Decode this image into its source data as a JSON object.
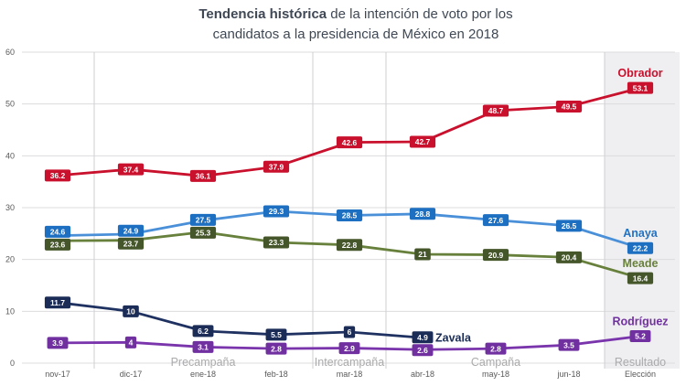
{
  "title": {
    "bold": "Tendencia histórica",
    "rest": " de la intención de voto por los",
    "line2": "candidatos a la presidencia de México en 2018"
  },
  "chart_data": {
    "type": "line",
    "categories": [
      "nov-17",
      "dic-17",
      "ene-18",
      "feb-18",
      "mar-18",
      "abr-18",
      "may-18",
      "jun-18",
      "Elección"
    ],
    "series": [
      {
        "name": "Obrador",
        "values": [
          36.2,
          37.4,
          36.1,
          37.9,
          42.6,
          42.7,
          48.7,
          49.5,
          53.1
        ],
        "line_color": "#c9102c",
        "label_bg": "#c9102c",
        "name_color": "#c9102c",
        "name_pos": "above_end"
      },
      {
        "name": "Anaya",
        "values": [
          24.6,
          24.9,
          27.5,
          29.3,
          28.5,
          28.8,
          27.6,
          26.5,
          22.2
        ],
        "line_color": "#4a90d9",
        "label_bg": "#1d6fc2",
        "name_color": "#2272c3",
        "name_pos": "above_end"
      },
      {
        "name": "Meade",
        "values": [
          23.6,
          23.7,
          25.3,
          23.3,
          22.8,
          21,
          20.9,
          20.4,
          16.4
        ],
        "line_color": "#67803c",
        "label_bg": "#45562a",
        "name_color": "#68803b",
        "name_pos": "above_end"
      },
      {
        "name": "Zavala",
        "values": [
          11.7,
          10,
          6.2,
          5.5,
          6,
          4.9,
          null,
          null,
          null
        ],
        "line_color": "#1e3160",
        "label_bg": "#1b2c56",
        "name_color": "#1b2c56",
        "name_pos": "right_end"
      },
      {
        "name": "Rodríguez",
        "values": [
          3.9,
          4,
          3.1,
          2.8,
          2.9,
          2.6,
          2.8,
          3.5,
          5.2
        ],
        "line_color": "#7a35ac",
        "label_bg": "#7030a0",
        "name_color": "#7030a0",
        "name_pos": "above_end"
      }
    ],
    "ylim": [
      0,
      60
    ],
    "yticks": [
      0,
      10,
      20,
      30,
      40,
      50,
      60
    ],
    "grid": true,
    "legend_position": "end-of-line-labels",
    "phase_separators": [
      0.5,
      3.5,
      4.5,
      7.5
    ],
    "phases": [
      {
        "label": "Precampaña",
        "at": 2
      },
      {
        "label": "Intercampaña",
        "at": 4
      },
      {
        "label": "Campaña",
        "at": 6
      },
      {
        "label": "Resultado",
        "at": 8
      }
    ],
    "shaded_from": 7.5,
    "colors": {
      "grid": "#dcdcde",
      "separator": "#cfcfd3",
      "shade": "#efeff1",
      "axis_text": "#595959",
      "phase_text": "#ababad",
      "title_text": "#3f4854"
    }
  }
}
